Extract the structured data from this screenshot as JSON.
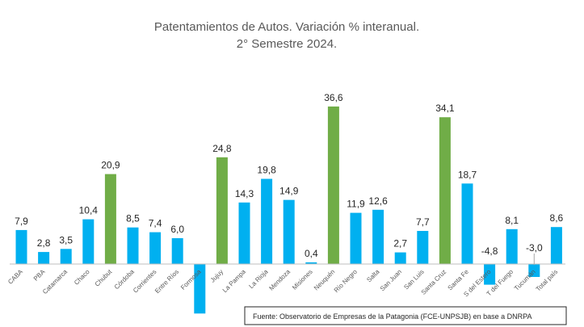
{
  "chart_data": {
    "type": "bar",
    "title": "Patentamientos de Autos. Variación % interanual.",
    "subtitle": "2° Semestre 2024.",
    "categories": [
      "CABA",
      "PBA",
      "Catamarca",
      "Chaco",
      "Chubut",
      "Córdoba",
      "Corrientes",
      "Entre Ríos",
      "Formosa",
      "Jujuy",
      "La Pampa",
      "La Rioja",
      "Mendoza",
      "Misiones",
      "Neuquén",
      "Río Negro",
      "Salta",
      "San Juan",
      "San Luis",
      "Santa Cruz",
      "Santa Fe",
      "S del Estero",
      "T del Fuego",
      "Tucumán",
      "Total país"
    ],
    "values": [
      7.9,
      2.8,
      3.5,
      10.4,
      20.9,
      8.5,
      7.4,
      6.0,
      -11.5,
      24.8,
      14.3,
      19.8,
      14.9,
      0.4,
      36.6,
      11.9,
      12.6,
      2.7,
      7.7,
      34.1,
      18.7,
      -4.8,
      8.1,
      -3.0,
      8.6
    ],
    "value_labels": [
      "7,9",
      "2,8",
      "3,5",
      "10,4",
      "20,9",
      "8,5",
      "7,4",
      "6,0",
      "",
      "24,8",
      "14,3",
      "19,8",
      "14,9",
      "0,4",
      "36,6",
      "11,9",
      "12,6",
      "2,7",
      "7,7",
      "34,1",
      "18,7",
      "-4,8",
      "8,1",
      "-3,0",
      "8,6"
    ],
    "highlighted": [
      "Chubut",
      "Jujuy",
      "Neuquén",
      "Santa Cruz"
    ],
    "colors": {
      "default": "#00B0F0",
      "highlight": "#70AD47"
    },
    "xlabel": "",
    "ylabel": "",
    "grid": false,
    "legend": "none"
  },
  "source": "Fuente:  Observatorio de Empresas de  la Patagonia (FCE-UNPSJB) en base a DNRPA"
}
